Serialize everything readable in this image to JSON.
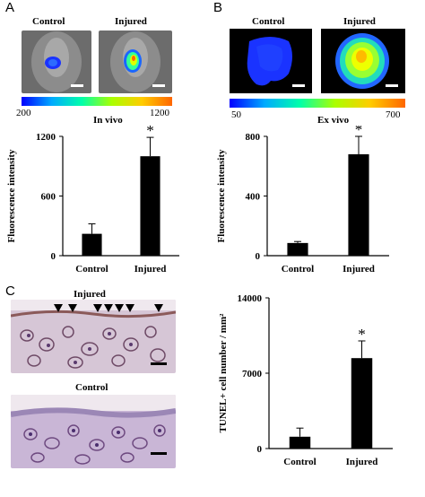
{
  "panels": {
    "A": {
      "letter": "A",
      "image_labels": [
        "Control",
        "Injured"
      ],
      "colorbar": {
        "min": "200",
        "max": "1200",
        "caption": "In vivo"
      }
    },
    "B": {
      "letter": "B",
      "image_labels": [
        "Control",
        "Injured"
      ],
      "colorbar": {
        "min": "50",
        "max": "700",
        "caption": "Ex vivo"
      }
    },
    "C": {
      "letter": "C",
      "image_labels": [
        "Injured",
        "Control"
      ]
    }
  },
  "colors": {
    "bar": "#000000",
    "colorbar_stops": [
      "#0000ff",
      "#00aaff",
      "#00ffaa",
      "#aaff00",
      "#ffcc00",
      "#ff6600"
    ]
  },
  "chart_data": [
    {
      "type": "bar",
      "categories": [
        "Control",
        "Injured"
      ],
      "values": [
        220,
        1000
      ],
      "errors": [
        100,
        190
      ],
      "significance": [
        "",
        "*"
      ],
      "ylabel": "Fluorescence intensity",
      "yticks": [
        0,
        600,
        1200
      ],
      "ylim": [
        0,
        1200
      ],
      "grid": false
    },
    {
      "type": "bar",
      "categories": [
        "Control",
        "Injured"
      ],
      "values": [
        85,
        680
      ],
      "errors": [
        10,
        120
      ],
      "significance": [
        "",
        "*"
      ],
      "ylabel": "Fluorescence intensity",
      "yticks": [
        0,
        400,
        800
      ],
      "ylim": [
        0,
        800
      ],
      "grid": false
    },
    {
      "type": "bar",
      "categories": [
        "Control",
        "Injured"
      ],
      "values": [
        1100,
        8400
      ],
      "errors": [
        800,
        1600
      ],
      "significance": [
        "",
        "*"
      ],
      "ylabel": "TUNEL+ cell number / mm²",
      "yticks": [
        0,
        7000,
        14000
      ],
      "ylim": [
        0,
        14000
      ],
      "grid": false
    }
  ]
}
